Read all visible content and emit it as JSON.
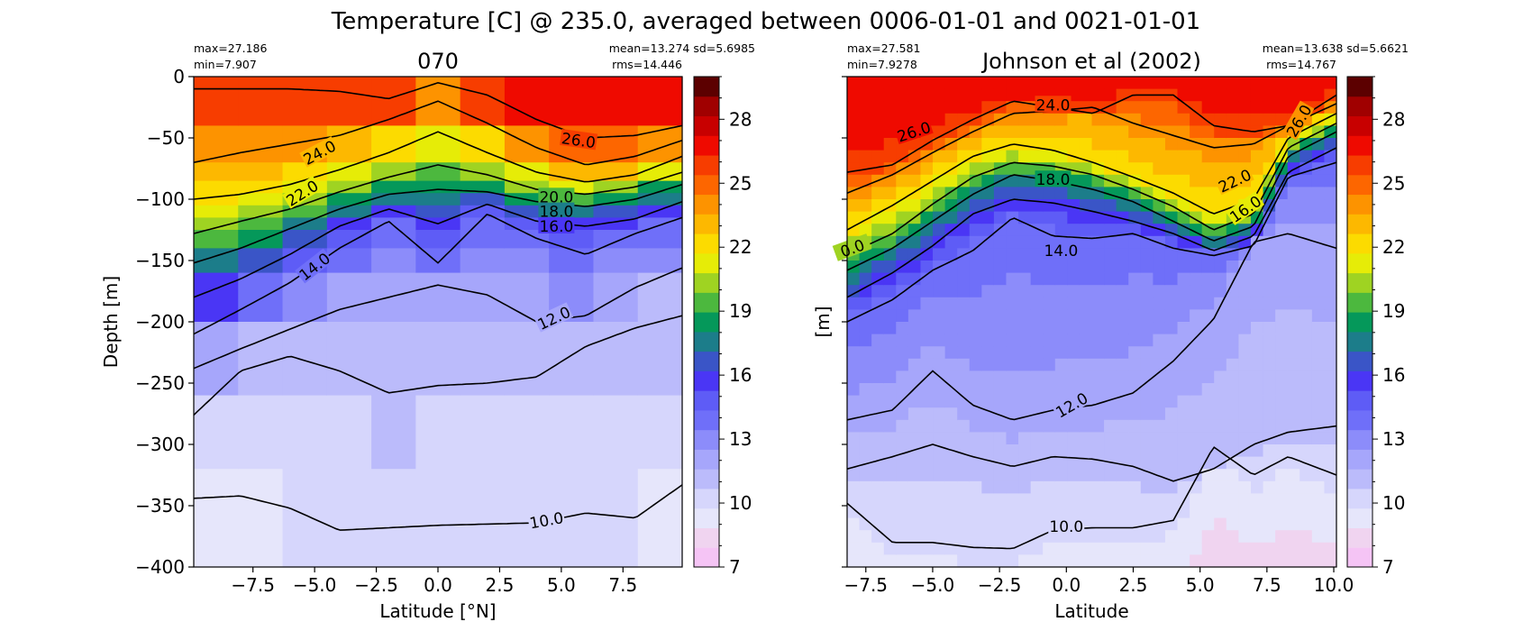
{
  "figure": {
    "title": "Temperature [C] @ 235.0, averaged between 0006-01-01 and 0021-01-01"
  },
  "colorbar": {
    "ticks": [
      7,
      10,
      13,
      16,
      19,
      22,
      25,
      28
    ],
    "min": 7,
    "max": 30,
    "colors": [
      "#f5c4f5",
      "#f0d4f0",
      "#e6e6fb",
      "#d6d6fc",
      "#bbbbfb",
      "#a6a6fb",
      "#8c8cfa",
      "#6f6ff9",
      "#5e5cf6",
      "#4a36f5",
      "#3a55c7",
      "#1c7d8a",
      "#05985a",
      "#4cb83e",
      "#9fd322",
      "#e6ec07",
      "#fcdb00",
      "#fdb800",
      "#fd9300",
      "#fd6600",
      "#f73d00",
      "#ef0a00",
      "#c80000",
      "#a00000",
      "#5c0000"
    ]
  },
  "chart_data": [
    {
      "type": "heatmap",
      "title": "070",
      "xlabel": "Latitude [°N]",
      "ylabel": "Depth [m]",
      "xlim": [
        -9.9,
        9.9
      ],
      "ylim": [
        -400,
        0
      ],
      "xticks": [
        "-7.5",
        "-5.0",
        "-2.5",
        "0.0",
        "2.5",
        "5.0",
        "7.5"
      ],
      "yticks": [
        "0",
        "-50",
        "-100",
        "-150",
        "-200",
        "-250",
        "-300",
        "-350",
        "-400"
      ],
      "stats_left": [
        "max=27.186",
        "min=7.907"
      ],
      "stats_right": [
        "mean=13.274 sd=5.6985",
        "rms=14.446"
      ],
      "profile": {
        "depths": [
          0,
          40,
          70,
          85,
          95,
          105,
          115,
          125,
          140,
          160,
          200,
          260,
          320,
          400
        ],
        "latitudes": [
          -9.9,
          -8,
          -6,
          -4,
          -2,
          0,
          2,
          4,
          6,
          8,
          9.9
        ],
        "isotherm_depths": [
          {
            "temp": 26,
            "values": [
              10,
              10,
              10,
              12,
              18,
              5,
              15,
              35,
              50,
              48,
              40
            ]
          },
          {
            "temp": 24,
            "values": [
              70,
              62,
              55,
              48,
              35,
              20,
              38,
              58,
              72,
              65,
              52
            ]
          },
          {
            "temp": 22,
            "values": [
              100,
              96,
              88,
              76,
              62,
              45,
              62,
              78,
              86,
              80,
              65
            ]
          },
          {
            "temp": 20,
            "values": [
              128,
              118,
              108,
              94,
              82,
              72,
              80,
              92,
              96,
              90,
              78
            ]
          },
          {
            "temp": 18,
            "values": [
              152,
              140,
              124,
              108,
              96,
              92,
              94,
              102,
              106,
              100,
              88
            ]
          },
          {
            "temp": 16,
            "values": [
              180,
              165,
              145,
              122,
              108,
              120,
              104,
              118,
              122,
              116,
              102
            ]
          },
          {
            "temp": 14,
            "values": [
              210,
              190,
              168,
              140,
              118,
              152,
              112,
              132,
              145,
              128,
              115
            ]
          },
          {
            "temp": 12,
            "values": [
              238,
              222,
              206,
              190,
              180,
              170,
              178,
              200,
              195,
              172,
              156
            ]
          },
          {
            "temp": 11,
            "values": [
              276,
              240,
              228,
              240,
              258,
              252,
              250,
              245,
              220,
              205,
              195
            ]
          },
          {
            "temp": 10,
            "values": [
              344,
              342,
              352,
              370,
              368,
              366,
              365,
              364,
              356,
              360,
              333
            ]
          }
        ]
      },
      "contour_labels": [
        {
          "text": "26.0",
          "lat": 5.7,
          "depth": 52,
          "angle": 8
        },
        {
          "text": "24.0",
          "lat": -4.8,
          "depth": 62,
          "angle": -28
        },
        {
          "text": "22.0",
          "lat": -5.5,
          "depth": 95,
          "angle": -32
        },
        {
          "text": "20.0",
          "lat": 4.8,
          "depth": 98,
          "angle": 0
        },
        {
          "text": "18.0",
          "lat": 4.8,
          "depth": 110,
          "angle": 0
        },
        {
          "text": "16.0",
          "lat": 4.8,
          "depth": 122,
          "angle": 0
        },
        {
          "text": "14.0",
          "lat": -5.0,
          "depth": 155,
          "angle": -38
        },
        {
          "text": "12.0",
          "lat": 4.7,
          "depth": 197,
          "angle": -25
        },
        {
          "text": "10.0",
          "lat": 4.4,
          "depth": 362,
          "angle": -10
        }
      ]
    },
    {
      "type": "heatmap",
      "title": "Johnson et al (2002)",
      "xlabel": "Latitude",
      "ylabel": "[m]",
      "xlim": [
        -8.2,
        10.1
      ],
      "ylim": [
        -400,
        0
      ],
      "xticks": [
        "-7.5",
        "-5.0",
        "-2.5",
        "0.0",
        "2.5",
        "5.0",
        "7.5",
        "10.0"
      ],
      "yticks": [],
      "stats_left": [
        "max=27.581",
        "min=7.9278"
      ],
      "stats_right": [
        "mean=13.638 sd=5.6621",
        "rms=14.767"
      ],
      "profile": {
        "depths": [
          0,
          40,
          70,
          85,
          95,
          105,
          115,
          125,
          140,
          160,
          200,
          260,
          320,
          400
        ],
        "latitudes": [
          -8.2,
          -6.5,
          -5,
          -3.5,
          -2,
          -0.5,
          1,
          2.5,
          4,
          5.5,
          7,
          8.3,
          10.1
        ],
        "isotherm_depths": [
          {
            "temp": 26,
            "values": [
              78,
              72,
              52,
              35,
              20,
              25,
              30,
              15,
              15,
              40,
              45,
              40,
              15
            ]
          },
          {
            "temp": 24,
            "values": [
              95,
              80,
              62,
              45,
              30,
              28,
              25,
              38,
              48,
              58,
              55,
              40,
              22
            ]
          },
          {
            "temp": 22,
            "values": [
              125,
              105,
              85,
              65,
              55,
              60,
              70,
              82,
              95,
              112,
              100,
              50,
              30
            ]
          },
          {
            "temp": 20,
            "values": [
              145,
              128,
              104,
              82,
              70,
              73,
              80,
              92,
              106,
              125,
              112,
              58,
              38
            ]
          },
          {
            "temp": 18,
            "values": [
              158,
              140,
              118,
              96,
              80,
              85,
              92,
              102,
              118,
              134,
              122,
              65,
              45
            ]
          },
          {
            "temp": 16,
            "values": [
              180,
              160,
              138,
              112,
              100,
              103,
              110,
              118,
              128,
              142,
              130,
              78,
              58
            ]
          },
          {
            "temp": 14,
            "values": [
              200,
              182,
              158,
              142,
              115,
              130,
              132,
              128,
              140,
              146,
              138,
              82,
              70
            ]
          },
          {
            "temp": 12,
            "values": [
              280,
              272,
              240,
              268,
              280,
              272,
              268,
              258,
              232,
              198,
              135,
              128,
              140
            ]
          },
          {
            "temp": 11,
            "values": [
              320,
              310,
              300,
              310,
              318,
              310,
              312,
              318,
              330,
              320,
              300,
              290,
              285
            ]
          },
          {
            "temp": 10,
            "values": [
              348,
              380,
              380,
              384,
              385,
              370,
              368,
              368,
              362,
              302,
              325,
              310,
              325
            ]
          }
        ]
      },
      "contour_labels": [
        {
          "text": "24.0",
          "lat": -0.5,
          "depth": 23,
          "angle": 0
        },
        {
          "text": "26.0",
          "lat": -5.7,
          "depth": 45,
          "angle": -18
        },
        {
          "text": "18.0",
          "lat": -0.5,
          "depth": 84,
          "angle": 0
        },
        {
          "text": "22.0",
          "lat": 6.3,
          "depth": 85,
          "angle": -25
        },
        {
          "text": "26.0",
          "lat": 8.7,
          "depth": 36,
          "angle": -60
        },
        {
          "text": "16.0",
          "lat": 6.7,
          "depth": 108,
          "angle": -35
        },
        {
          "text": "0.0",
          "lat": -8.0,
          "depth": 140,
          "angle": -20
        },
        {
          "text": "14.0",
          "lat": -0.2,
          "depth": 142,
          "angle": 0
        },
        {
          "text": "12.0",
          "lat": 0.2,
          "depth": 268,
          "angle": -30
        },
        {
          "text": "10.0",
          "lat": 0.0,
          "depth": 367,
          "angle": 0
        }
      ]
    }
  ]
}
